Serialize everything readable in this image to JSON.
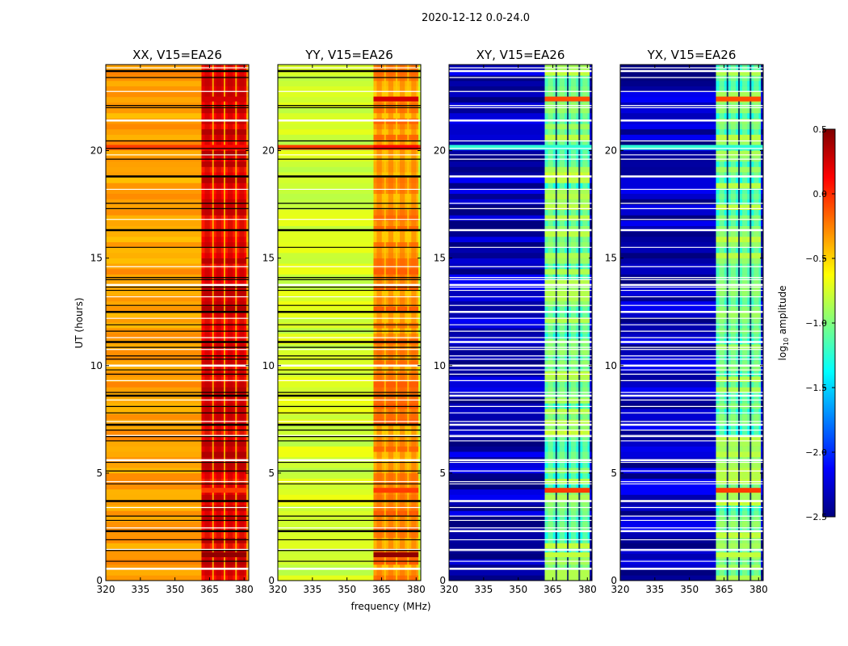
{
  "chart_data": {
    "type": "heatmap",
    "title": "2020-12-12 0.0-24.0",
    "xlabel": "frequency (MHz)",
    "ylabel": "UT (hours)",
    "xlim": [
      320,
      382
    ],
    "ylim": [
      0,
      24
    ],
    "xticks": [
      320,
      335,
      350,
      365,
      380
    ],
    "yticks": [
      0,
      5,
      10,
      15,
      20
    ],
    "colorbar": {
      "label": "log10 amplitude",
      "label_prefix": "log",
      "label_subscript": "10",
      "label_suffix": " amplitude",
      "range": [
        -2.5,
        0.5
      ],
      "ticks": [
        0.5,
        0.0,
        -0.5,
        -1.0,
        -1.5,
        -2.0,
        -2.5
      ],
      "tick_labels": [
        "0.5",
        "0.0",
        "−0.5",
        "−1.0",
        "−1.5",
        "−2.0",
        "−2.5"
      ],
      "colormap": "jet",
      "jet_stops": [
        "#00007f",
        "#0000ff",
        "#007fff",
        "#00ffff",
        "#7fff7f",
        "#ffff00",
        "#ff7f00",
        "#ff0000",
        "#7f0000"
      ]
    },
    "panels": [
      {
        "title": "XX, V15=EA26",
        "base_level": -0.35,
        "band_level": 0.15,
        "band_range": [
          361.5,
          381
        ]
      },
      {
        "title": "YY, V15=EA26",
        "base_level": -0.75,
        "band_level": -0.35,
        "band_range": [
          361.5,
          381
        ]
      },
      {
        "title": "XY, V15=EA26",
        "base_level": -2.35,
        "band_level": -1.1,
        "band_range": [
          361.5,
          381
        ]
      },
      {
        "title": "YX, V15=EA26",
        "base_level": -2.35,
        "band_level": -1.1,
        "band_range": [
          361.5,
          381
        ]
      }
    ],
    "band_channels_mhz": [
      364,
      369,
      374,
      379
    ],
    "band_gaps_mhz": [
      366.5,
      371.5,
      376.5
    ],
    "bright_rows_ut": [
      {
        "ut": 20.15,
        "level_auto": -0.05,
        "level_cross": -1.25
      },
      {
        "ut": 22.4,
        "level_auto": 0.1,
        "level_cross": -0.1
      },
      {
        "ut": 4.2,
        "level_auto": -0.2,
        "level_cross": -0.05
      },
      {
        "ut": 1.2,
        "level_auto": 0.3,
        "level_cross": -0.8
      }
    ],
    "flagged_rows_ut": [
      0.55,
      0.9,
      1.4,
      1.45,
      1.9,
      2.3,
      2.45,
      2.8,
      3.0,
      3.4,
      3.7,
      4.5,
      4.6,
      5.1,
      5.5,
      5.6,
      6.5,
      6.7,
      6.75,
      7.0,
      7.25,
      7.4,
      7.8,
      8.1,
      8.4,
      8.6,
      8.75,
      9.3,
      9.6,
      9.8,
      10.0,
      10.3,
      10.45,
      10.75,
      10.85,
      11.1,
      11.3,
      11.6,
      11.9,
      12.2,
      12.5,
      12.8,
      13.2,
      13.5,
      13.65,
      13.75,
      14.0,
      14.1,
      14.6,
      15.5,
      16.3,
      16.8,
      17.3,
      17.55,
      18.2,
      18.8,
      19.6,
      19.8,
      20.1,
      20.45,
      21.4,
      22.0,
      22.1,
      22.75,
      23.4,
      23.7,
      23.85
    ]
  }
}
